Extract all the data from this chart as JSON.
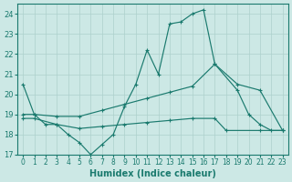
{
  "xlabel": "Humidex (Indice chaleur)",
  "bg_color": "#cce8e5",
  "line_color": "#1a7a6e",
  "grid_color": "#add0cc",
  "xlim": [
    -0.5,
    23.5
  ],
  "ylim": [
    17,
    24.5
  ],
  "yticks": [
    17,
    18,
    19,
    20,
    21,
    22,
    23,
    24
  ],
  "xticks": [
    0,
    1,
    2,
    3,
    4,
    5,
    6,
    7,
    8,
    9,
    10,
    11,
    12,
    13,
    14,
    15,
    16,
    17,
    18,
    19,
    20,
    21,
    22,
    23
  ],
  "line1_x": [
    0,
    1,
    2,
    3,
    4,
    5,
    6,
    7,
    8,
    9,
    10,
    11,
    12,
    13,
    14,
    15,
    16,
    17,
    19,
    20,
    21,
    22,
    23
  ],
  "line1_y": [
    20.5,
    19.0,
    18.5,
    18.5,
    18.0,
    17.6,
    17.0,
    17.5,
    18.0,
    19.4,
    20.5,
    22.2,
    21.0,
    23.5,
    23.6,
    24.0,
    24.2,
    21.5,
    20.2,
    19.0,
    18.5,
    18.2,
    18.2
  ],
  "line2_x": [
    0,
    1,
    3,
    5,
    7,
    9,
    11,
    13,
    15,
    17,
    19,
    21,
    23
  ],
  "line2_y": [
    19.0,
    19.0,
    18.9,
    18.9,
    19.2,
    19.5,
    19.8,
    20.1,
    20.4,
    21.5,
    20.5,
    20.2,
    18.2
  ],
  "line3_x": [
    0,
    1,
    3,
    5,
    7,
    9,
    11,
    13,
    15,
    17,
    18,
    21,
    23
  ],
  "line3_y": [
    18.8,
    18.8,
    18.5,
    18.3,
    18.4,
    18.5,
    18.6,
    18.7,
    18.8,
    18.8,
    18.2,
    18.2,
    18.2
  ]
}
